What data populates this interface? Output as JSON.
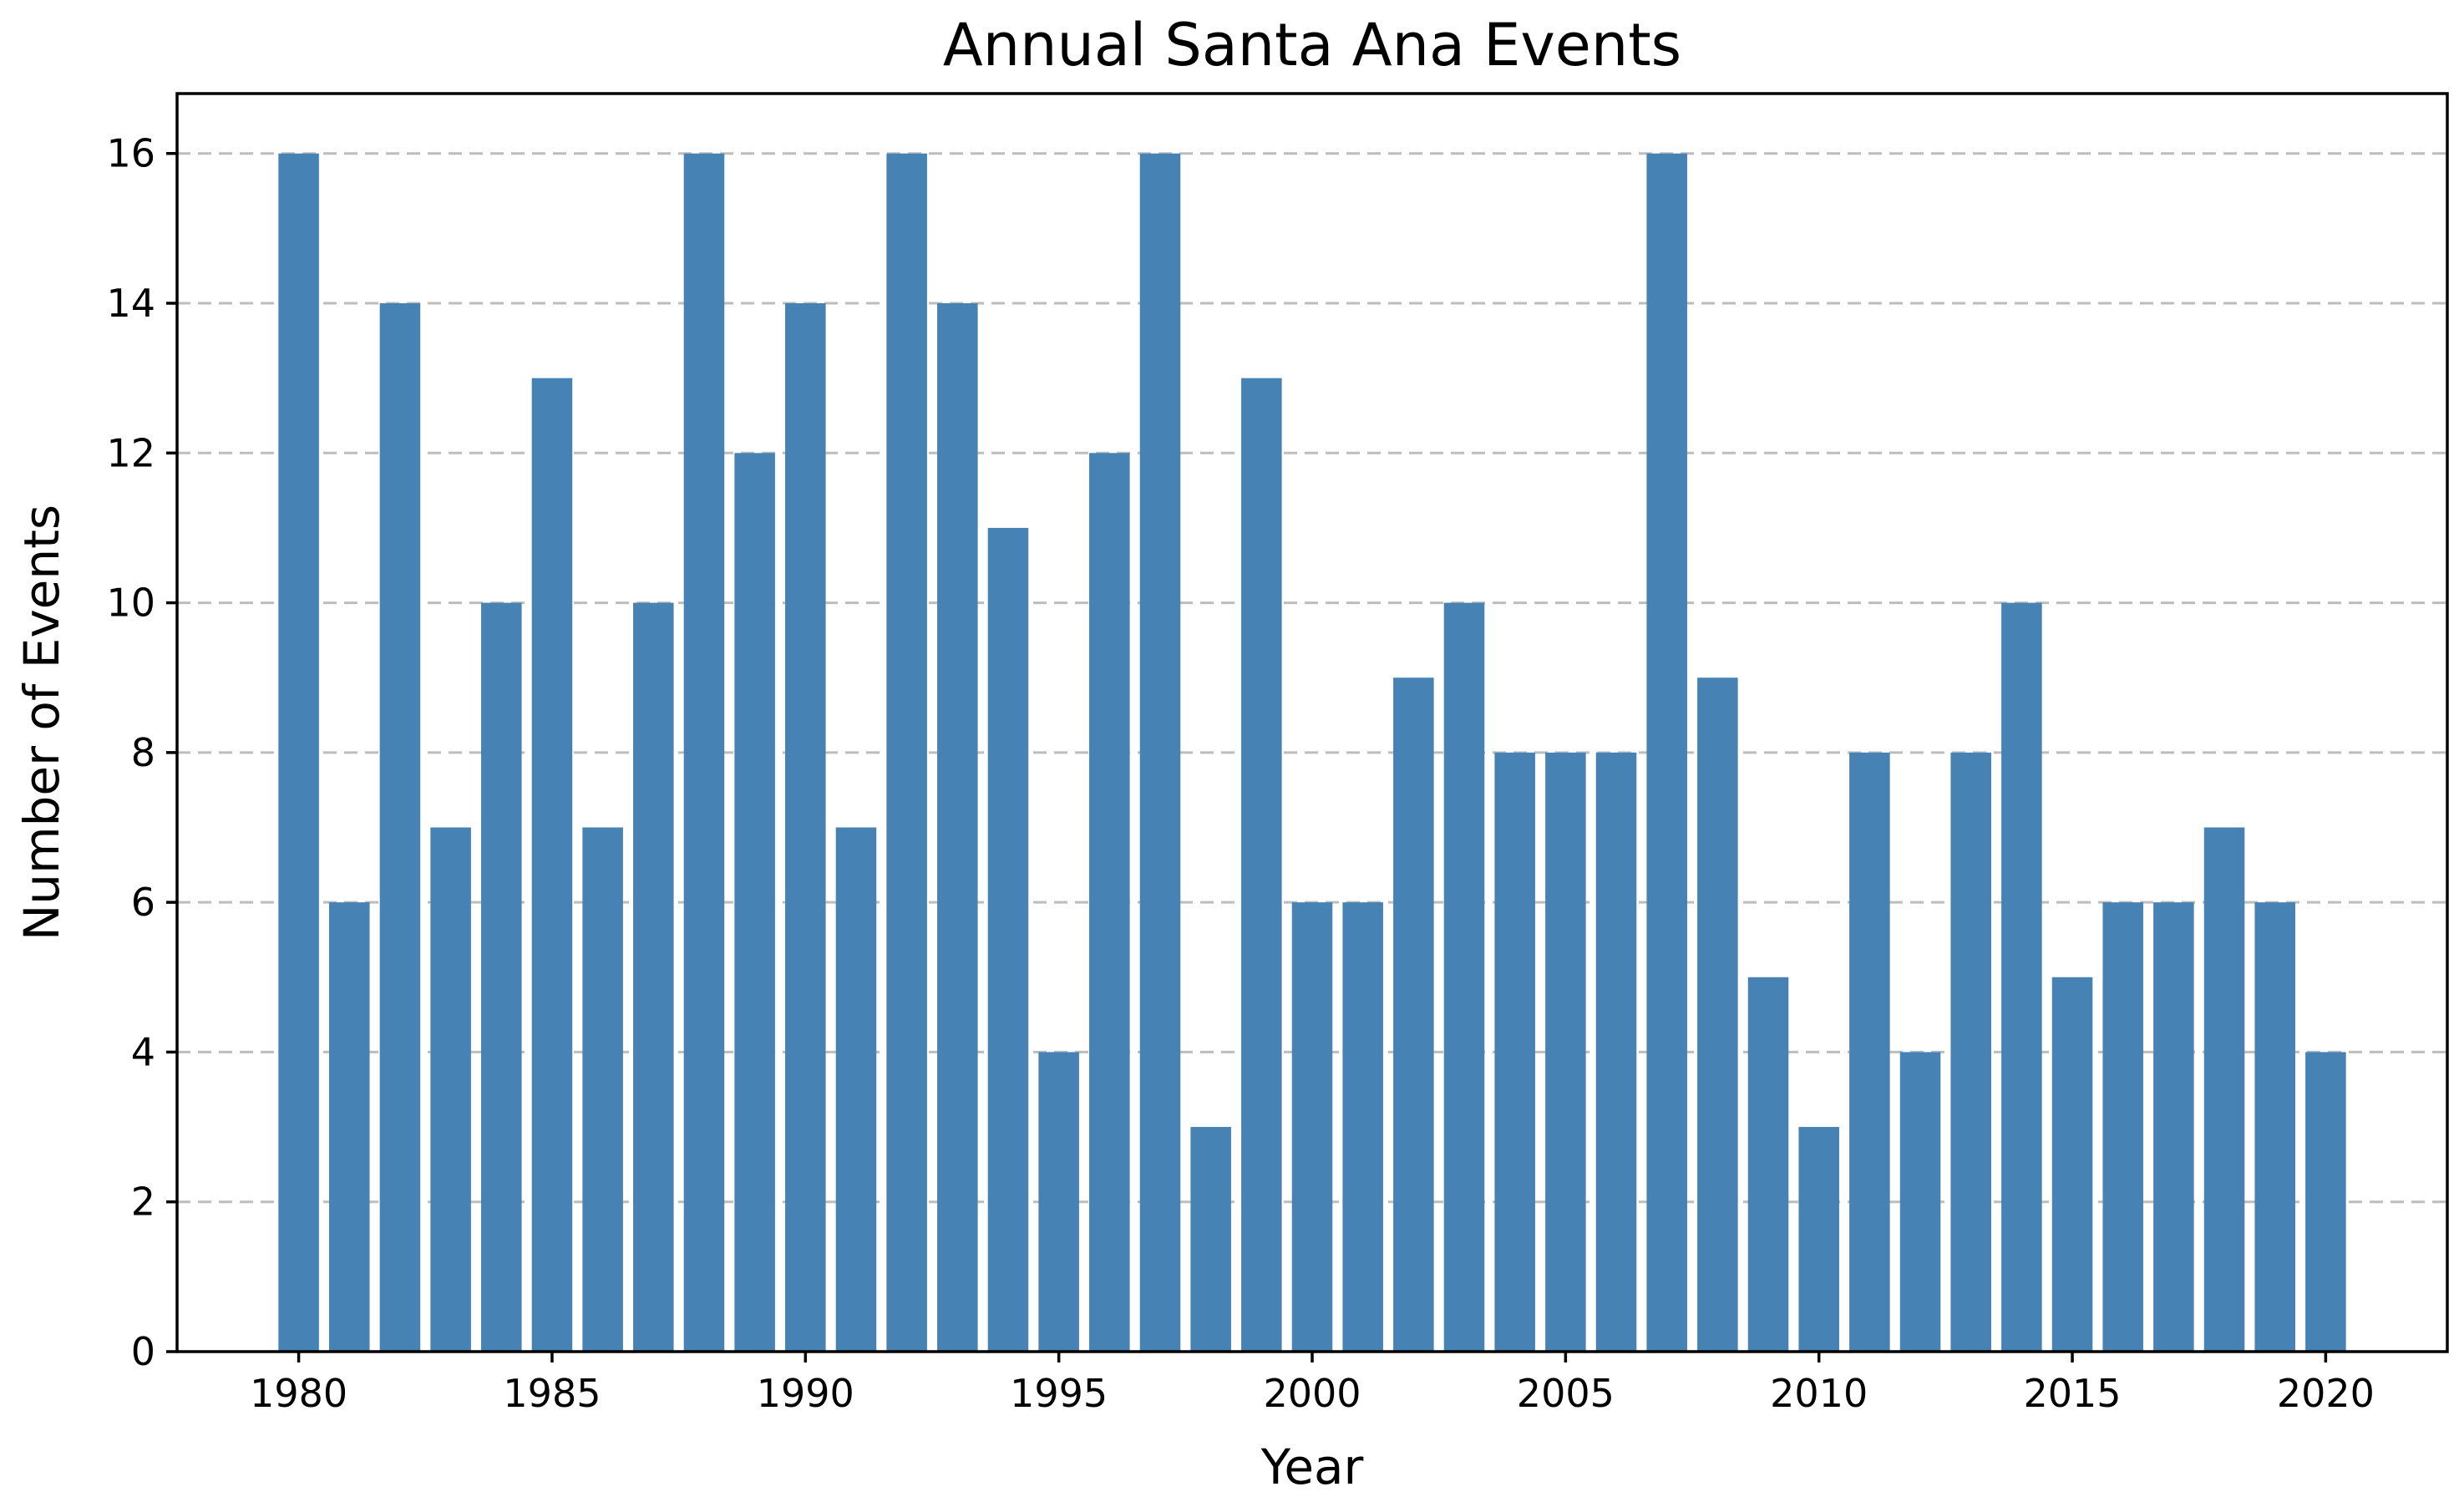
{
  "chart_data": {
    "type": "bar",
    "title": "Annual Santa Ana Events",
    "xlabel": "Year",
    "ylabel": "Number of Events",
    "categories": [
      1980,
      1981,
      1982,
      1983,
      1984,
      1985,
      1986,
      1987,
      1988,
      1989,
      1990,
      1991,
      1992,
      1993,
      1994,
      1995,
      1996,
      1997,
      1998,
      1999,
      2000,
      2001,
      2002,
      2003,
      2004,
      2005,
      2006,
      2007,
      2008,
      2009,
      2010,
      2011,
      2012,
      2013,
      2014,
      2015,
      2016,
      2017,
      2018,
      2019,
      2020
    ],
    "values": [
      16,
      6,
      14,
      7,
      10,
      13,
      7,
      10,
      16,
      12,
      14,
      7,
      16,
      14,
      11,
      4,
      12,
      16,
      3,
      13,
      6,
      6,
      9,
      10,
      8,
      8,
      8,
      16,
      9,
      5,
      3,
      8,
      4,
      8,
      10,
      5,
      6,
      6,
      7,
      6,
      4
    ],
    "xlim": [
      1977.6,
      2022.4
    ],
    "ylim": [
      0,
      16.8
    ],
    "xticks": [
      1980,
      1985,
      1990,
      1995,
      2000,
      2005,
      2010,
      2015,
      2020
    ],
    "yticks": [
      0,
      2,
      4,
      6,
      8,
      10,
      12,
      14,
      16
    ],
    "grid": "y-dashed",
    "bar_color": "#4682b4"
  }
}
